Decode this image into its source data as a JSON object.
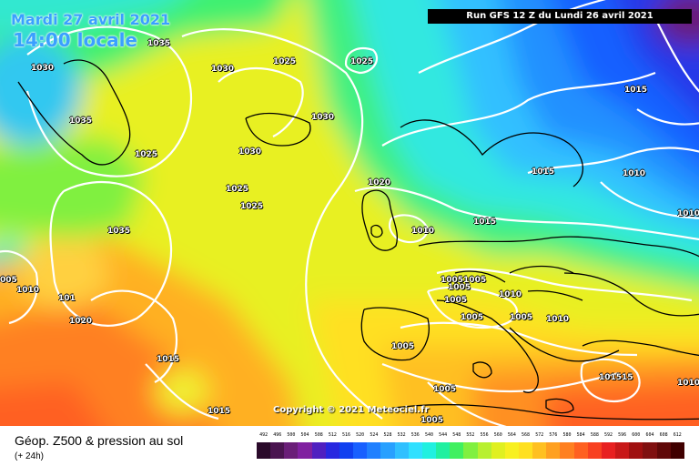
{
  "header": {
    "date": "Mardi 27 avril 2021",
    "time": "14:00 locale",
    "run": "Run GFS 12 Z du Lundi 26 avril 2021"
  },
  "copyright": "Copyright © 2021 Meteociel.fr",
  "legend": {
    "title": "Géop. Z500 & pression au sol",
    "subtitle": "(+ 24h)",
    "values": [
      "492",
      "496",
      "500",
      "504",
      "508",
      "512",
      "516",
      "520",
      "524",
      "528",
      "532",
      "536",
      "540",
      "544",
      "548",
      "552",
      "556",
      "560",
      "564",
      "568",
      "572",
      "576",
      "580",
      "584",
      "588",
      "592",
      "596",
      "600",
      "604",
      "608",
      "612"
    ],
    "colors": [
      "#2a0a2a",
      "#4a1450",
      "#6a1e78",
      "#8020a0",
      "#5020c0",
      "#2828e0",
      "#1040f0",
      "#1860ff",
      "#2080ff",
      "#28a0ff",
      "#30c0ff",
      "#30e0ff",
      "#20f0e0",
      "#20f0a0",
      "#40f060",
      "#80f040",
      "#b8f030",
      "#e0f020",
      "#f8f020",
      "#ffe020",
      "#ffc020",
      "#ffa020",
      "#ff8020",
      "#ff6020",
      "#f84020",
      "#e82020",
      "#c81818",
      "#a01010",
      "#801010",
      "#600808",
      "#400000"
    ]
  },
  "isobars": [
    {
      "id": "a",
      "text": "1025"
    },
    {
      "id": "b",
      "text": "1035"
    },
    {
      "id": "c",
      "text": "1030"
    },
    {
      "id": "d",
      "text": "1030"
    },
    {
      "id": "e",
      "text": "1025"
    },
    {
      "id": "f",
      "text": "1035"
    },
    {
      "id": "g",
      "text": "1030"
    },
    {
      "id": "h",
      "text": "1025"
    },
    {
      "id": "i",
      "text": "1030"
    },
    {
      "id": "j",
      "text": "1015"
    },
    {
      "id": "k",
      "text": "1025"
    },
    {
      "id": "l",
      "text": "1025"
    },
    {
      "id": "m",
      "text": "1020"
    },
    {
      "id": "n",
      "text": "1035"
    },
    {
      "id": "o",
      "text": "1010"
    },
    {
      "id": "p",
      "text": "1015"
    },
    {
      "id": "q",
      "text": "1010"
    },
    {
      "id": "r",
      "text": "1015"
    },
    {
      "id": "s",
      "text": "1010"
    },
    {
      "id": "t",
      "text": "005"
    },
    {
      "id": "u",
      "text": "1010"
    },
    {
      "id": "v",
      "text": "101"
    },
    {
      "id": "w",
      "text": "1020"
    },
    {
      "id": "x",
      "text": "10051005"
    },
    {
      "id": "y",
      "text": "1005"
    },
    {
      "id": "z",
      "text": "1010"
    },
    {
      "id": "aa",
      "text": "1005"
    },
    {
      "id": "ab",
      "text": "1005"
    },
    {
      "id": "ac",
      "text": "1010"
    },
    {
      "id": "ad",
      "text": "1005"
    },
    {
      "id": "ae",
      "text": "1015"
    },
    {
      "id": "af",
      "text": "1005"
    },
    {
      "id": "ag",
      "text": "1015"
    },
    {
      "id": "ah",
      "text": "101515"
    },
    {
      "id": "ai",
      "text": "1005"
    },
    {
      "id": "aj",
      "text": "1005"
    },
    {
      "id": "ak",
      "text": "1010"
    }
  ]
}
